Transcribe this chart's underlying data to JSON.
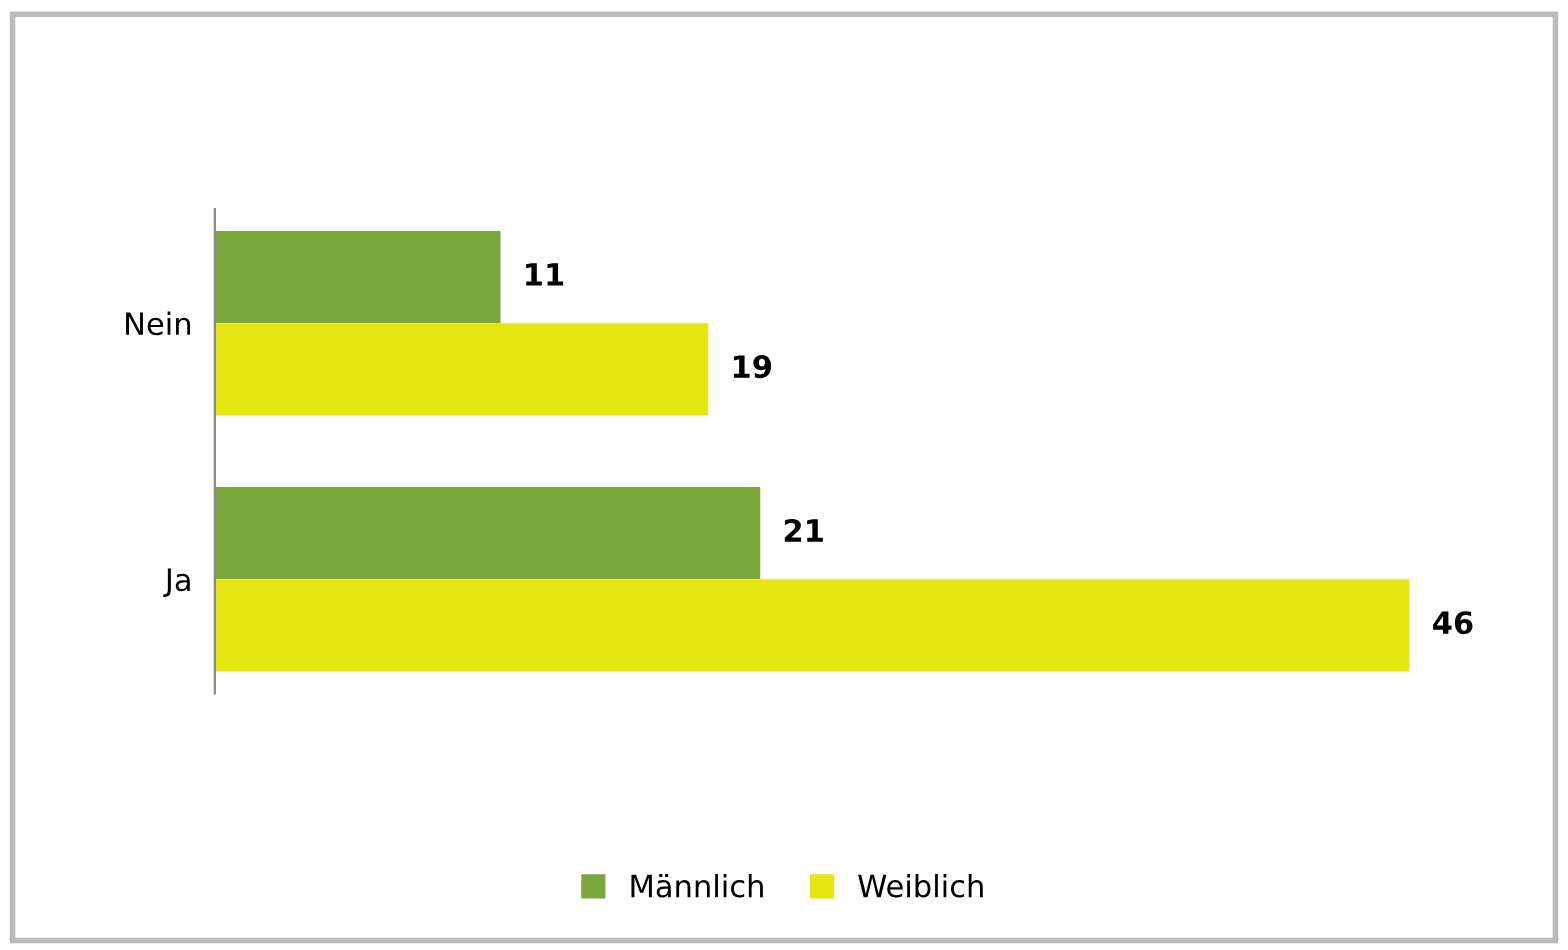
{
  "chart_data": {
    "type": "bar",
    "orientation": "horizontal",
    "categories": [
      "Nein",
      "Ja"
    ],
    "series": [
      {
        "name": "Männlich",
        "color": "#7aa83c",
        "values": [
          11,
          21
        ]
      },
      {
        "name": "Weiblich",
        "color": "#e6e612",
        "values": [
          19,
          46
        ]
      }
    ],
    "data_labels": true,
    "legend": "bottom",
    "grid": false
  }
}
